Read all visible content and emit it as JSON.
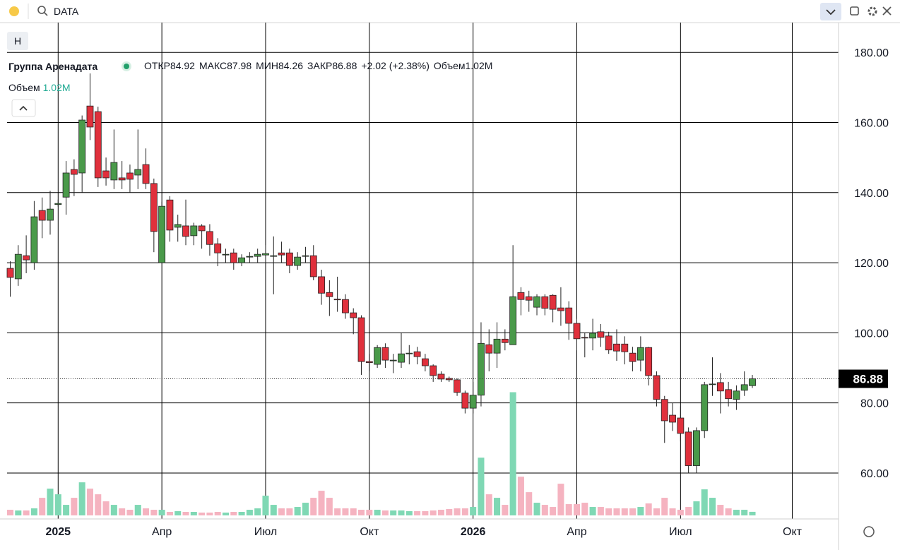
{
  "ui": {
    "search": "DATA",
    "interval_button": "H"
  },
  "chart_data": {
    "type": "candlestick",
    "legend": {
      "name": "Группа Аренадата",
      "open_label": "ОТКР",
      "high_label": "МАКС",
      "low_label": "МИН",
      "close_label": "ЗАКР",
      "change": "+2.02 (+2.38%)",
      "volume_label": "Объем",
      "volume_value": "1.02M"
    },
    "up_color": "#4a9a4a",
    "down_color": "#e0303c",
    "volume_up_color": "#7fd8b4",
    "volume_down_color": "#f5b3c0",
    "open": [
      118.4,
      115.4,
      122,
      120,
      134.9,
      132.1,
      136.6,
      138.7,
      146.6,
      145.6,
      164.7,
      163.1,
      146.2,
      143.6,
      144.2,
      145.6,
      145,
      148,
      142.6,
      120,
      137.9,
      130.1,
      130.5,
      127.7,
      130.5,
      128.9,
      125.4,
      122.4,
      122.8,
      120,
      121.6,
      121.8,
      122.2,
      122,
      122.8,
      122.8,
      119.2,
      122,
      122,
      116,
      111.5,
      109.6,
      109.5,
      105.7,
      104.3,
      91.8,
      91,
      95.8,
      92.2,
      91.6,
      94,
      94.6,
      92.6,
      90.6,
      88.2,
      87,
      86.6,
      82.8,
      78.5,
      82.2,
      96.6,
      94.2,
      98.2,
      96.6,
      111.5,
      110.3,
      107.3,
      110.3,
      110.7,
      107.1,
      107.1,
      102.7,
      98.7,
      98.5,
      100.3,
      99.1,
      96.8,
      96.8,
      94.2,
      92.2,
      95.8,
      87.8,
      81,
      76.5,
      75.7,
      71.7,
      62.1,
      72.1,
      85.2,
      85.8,
      83.8,
      81,
      83.6,
      84.92
    ],
    "high": [
      120.4,
      125,
      127.8,
      137.6,
      138.6,
      140.5,
      138,
      149,
      149.5,
      162,
      174,
      164.5,
      150,
      158,
      149,
      148,
      158,
      152.6,
      144,
      137.4,
      139,
      133.7,
      138,
      131.4,
      131,
      131,
      127,
      124,
      124,
      122.4,
      123,
      124,
      125,
      127.5,
      126,
      124,
      123,
      124.5,
      125,
      118,
      115,
      116,
      111,
      107,
      105,
      94,
      96.5,
      97,
      94,
      100,
      96.5,
      96,
      94,
      91,
      89,
      87.5,
      87,
      83.5,
      86,
      103,
      101,
      103,
      101,
      125,
      113,
      112,
      111,
      111,
      111,
      113,
      109,
      104,
      100,
      104,
      102.5,
      100.3,
      101,
      99,
      96,
      99,
      96,
      89,
      82,
      80,
      79,
      73,
      73,
      86,
      93,
      88.5,
      86,
      85,
      89,
      87.98
    ],
    "low": [
      110.3,
      113.4,
      117,
      118,
      127,
      128,
      136,
      133.7,
      139,
      140,
      155,
      141.6,
      142,
      141,
      141,
      140,
      141,
      141,
      123,
      120,
      126,
      126,
      125,
      125,
      124,
      122,
      119,
      120,
      118,
      119,
      120,
      120,
      120,
      111,
      120,
      117,
      118,
      120,
      115,
      108,
      104.8,
      106,
      104,
      99.6,
      88,
      89,
      90,
      90,
      88.5,
      90,
      91,
      91,
      89,
      86,
      86,
      86,
      82,
      77,
      77,
      79,
      89,
      90,
      95,
      97,
      105,
      106,
      105,
      105,
      103,
      102,
      98,
      95,
      93,
      95,
      96,
      94,
      92,
      91,
      89,
      89,
      85,
      79,
      68.6,
      72,
      69,
      60,
      60,
      70,
      82,
      77,
      79,
      78,
      82,
      84.26
    ],
    "close": [
      115.8,
      122.4,
      120.8,
      133.1,
      132.1,
      135.3,
      136.9,
      145.6,
      145.2,
      160.7,
      158.7,
      144.2,
      144.2,
      148.6,
      143.6,
      143.8,
      146.6,
      142.6,
      128.9,
      136.1,
      129.3,
      130.9,
      127.5,
      130.5,
      129.1,
      125.2,
      122.8,
      122.4,
      120,
      121.4,
      121.8,
      122.4,
      122.6,
      122,
      122.2,
      119.2,
      121.6,
      122,
      116,
      111.3,
      110.3,
      109.5,
      105.7,
      104.3,
      91.8,
      91.5,
      95.8,
      92.2,
      92.2,
      94,
      94.2,
      93.2,
      90.6,
      87.8,
      86.8,
      86.6,
      83,
      78.5,
      82.2,
      97,
      94.2,
      98.2,
      97.2,
      110.3,
      109.5,
      109.3,
      110.3,
      107,
      106.7,
      106.3,
      102.7,
      98.3,
      98.5,
      99.9,
      98.7,
      95.1,
      94.8,
      94.6,
      91.8,
      95.8,
      87.8,
      81,
      74.9,
      74.5,
      71.3,
      62.1,
      72.1,
      85.2,
      85.4,
      83.4,
      81.2,
      83.4,
      85.2,
      86.88
    ],
    "volume": [
      1.6,
      1.4,
      1.4,
      2,
      5,
      7.6,
      6,
      3,
      5,
      9.4,
      7.6,
      6,
      4,
      3,
      2,
      1.6,
      3,
      2,
      1.6,
      1.6,
      1,
      1.2,
      1,
      1,
      0.8,
      0.8,
      1,
      0.8,
      1,
      1,
      1.6,
      2,
      5.6,
      3,
      2,
      2,
      2.4,
      3.6,
      5,
      7,
      5,
      2,
      2,
      2,
      1.6,
      1.6,
      1.6,
      1.4,
      1.4,
      1.4,
      1.2,
      1.2,
      1.2,
      1.4,
      1.6,
      1.8,
      2,
      2,
      2.4,
      16.4,
      6,
      5,
      3,
      35,
      11,
      6.6,
      3.6,
      3,
      2.4,
      9,
      3.2,
      3.2,
      3.6,
      2.4,
      2.4,
      2,
      2,
      2,
      2,
      2.4,
      3.4,
      2,
      5,
      2,
      1.6,
      2.4,
      4,
      7.4,
      5,
      3,
      2,
      1.6,
      1.6,
      1.02
    ],
    "xlim": [
      -0.4,
      103.8
    ],
    "xticks": [
      {
        "value": 6,
        "label": "2025"
      },
      {
        "value": 19,
        "label": "Апр"
      },
      {
        "value": 32,
        "label": "Июл"
      },
      {
        "value": 45,
        "label": "Окт"
      },
      {
        "value": 58,
        "label": "2026"
      },
      {
        "value": 71,
        "label": "Апр"
      },
      {
        "value": 84,
        "label": "Июл"
      },
      {
        "value": 98,
        "label": "Окт"
      }
    ],
    "ylim": [
      46.9,
      188.5
    ],
    "yticks": [
      {
        "value": 60,
        "label": "60.00"
      },
      {
        "value": 80,
        "label": "80.00"
      },
      {
        "value": 100,
        "label": "100.00"
      },
      {
        "value": 120,
        "label": "120.00"
      },
      {
        "value": 140,
        "label": "140.00"
      },
      {
        "value": 160,
        "label": "160.00"
      },
      {
        "value": 180,
        "label": "180.00"
      }
    ],
    "volume_ylim": [
      0,
      140
    ],
    "grid": true
  }
}
